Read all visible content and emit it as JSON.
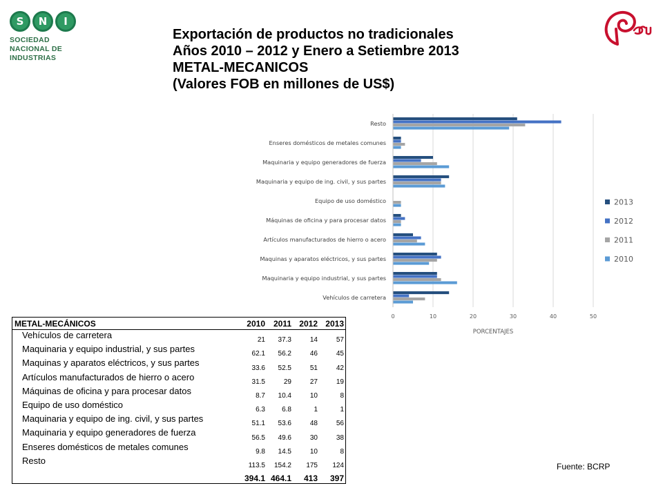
{
  "logos": {
    "sni": {
      "letters": [
        "S",
        "N",
        "I"
      ],
      "name_lines": [
        "SOCIEDAD",
        "NACIONAL DE",
        "INDUSTRIAS"
      ],
      "color": "#2f9a63"
    },
    "peru": {
      "text": "Perú",
      "color": "#c8102e"
    }
  },
  "title": {
    "line1": "Exportación de productos no tradicionales",
    "line2": "Años 2010 – 2012 y Enero a Setiembre 2013",
    "line3": "METAL-MECANICOS",
    "line4": "(Valores FOB en millones de US$)"
  },
  "chart_data": {
    "type": "bar",
    "orientation": "horizontal",
    "categories": [
      "Resto",
      "Enseres domésticos de metales comunes",
      "Maquinaria y equipo generadores de fuerza",
      "Maquinaria y equipo de ing. civil, y sus partes",
      "Equipo de uso doméstico",
      "Máquinas de oficina y para procesar datos",
      "Artículos manufacturados de hierro o acero",
      "Maquinas y aparatos eléctricos, y sus partes",
      "Maquinaria y equipo industrial, y sus partes",
      "Vehículos de carretera"
    ],
    "series": [
      {
        "name": "2013",
        "color": "#254f7e",
        "values": [
          31,
          2,
          10,
          14,
          0,
          2,
          5,
          11,
          11,
          14
        ]
      },
      {
        "name": "2012",
        "color": "#4472c4",
        "values": [
          42,
          2,
          7,
          12,
          0,
          3,
          7,
          12,
          11,
          4
        ]
      },
      {
        "name": "2011",
        "color": "#a5a5a5",
        "values": [
          33,
          3,
          11,
          12,
          2,
          2,
          6,
          11,
          12,
          8
        ]
      },
      {
        "name": "2010",
        "color": "#5b9bd5",
        "values": [
          29,
          2,
          14,
          13,
          2,
          2,
          8,
          9,
          16,
          5
        ]
      }
    ],
    "xlabel": "PORCENTAJES",
    "xlim": [
      0,
      50
    ],
    "xticks": [
      0,
      10,
      20,
      30,
      40,
      50
    ],
    "grid": true,
    "legend_position": "right"
  },
  "table": {
    "header": {
      "name": "METAL-MECÁNICOS",
      "years": [
        "2010",
        "2011",
        "2012",
        "2013"
      ]
    },
    "rows": [
      {
        "name": "Vehículos de carretera",
        "values": [
          "21",
          "37.3",
          "14",
          "57"
        ]
      },
      {
        "name": "Maquinaria y equipo industrial, y sus partes",
        "values": [
          "62.1",
          "56.2",
          "46",
          "45"
        ]
      },
      {
        "name": "Maquinas y aparatos eléctricos, y sus partes",
        "values": [
          "33.6",
          "52.5",
          "51",
          "42"
        ]
      },
      {
        "name": "Artículos manufacturados de hierro o acero",
        "values": [
          "31.5",
          "29",
          "27",
          "19"
        ]
      },
      {
        "name": "Máquinas de oficina y para procesar datos",
        "values": [
          "8.7",
          "10.4",
          "10",
          "8"
        ]
      },
      {
        "name": "Equipo de uso doméstico",
        "values": [
          "6.3",
          "6.8",
          "1",
          "1"
        ]
      },
      {
        "name": "Maquinaria y equipo de ing. civil, y sus partes",
        "values": [
          "51.1",
          "53.6",
          "48",
          "56"
        ]
      },
      {
        "name": "Maquinaria y equipo generadores de fuerza",
        "values": [
          "56.5",
          "49.6",
          "30",
          "38"
        ]
      },
      {
        "name": "Enseres domésticos de metales comunes",
        "values": [
          "9.8",
          "14.5",
          "10",
          "8"
        ]
      },
      {
        "name": "Resto",
        "values": [
          "113.5",
          "154.2",
          "175",
          "124"
        ]
      }
    ],
    "totals": [
      "394.1",
      "464.1",
      "413",
      "397"
    ]
  },
  "source": "Fuente: BCRP"
}
